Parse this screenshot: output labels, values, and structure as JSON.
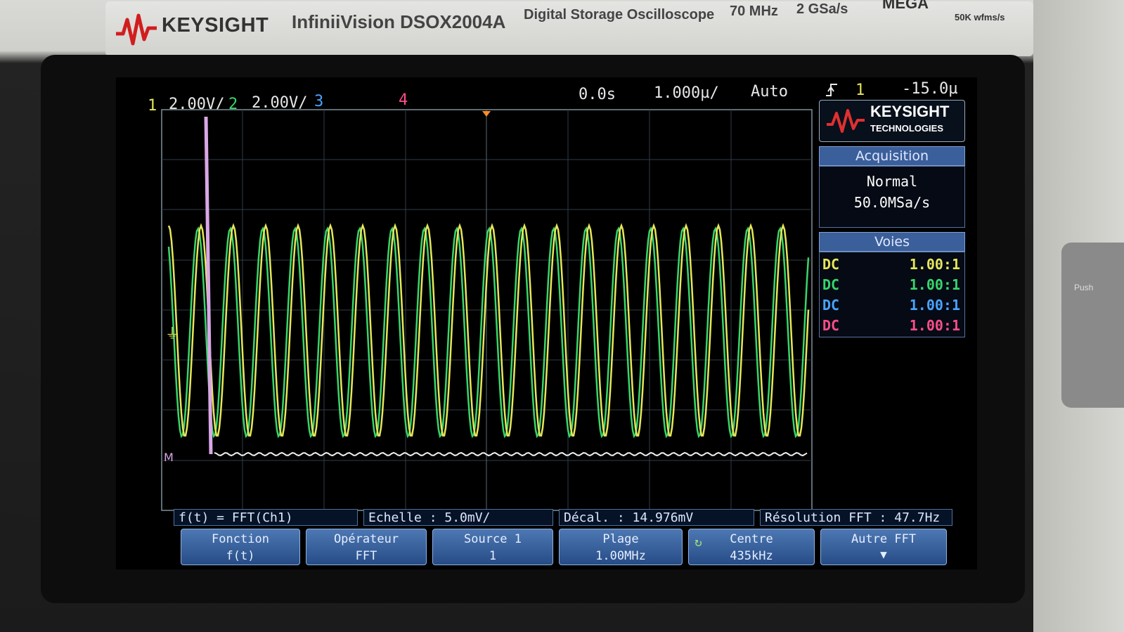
{
  "header": {
    "brand": "KEYSIGHT",
    "model": "InfiniiVision DSOX2004A",
    "description": "Digital Storage Oscilloscope",
    "bandwidth": "70 MHz",
    "sample_rate": "2 GSa/s",
    "mega": "MEGA",
    "wfms": "50K wfms/s"
  },
  "status": {
    "ch1_num": "1",
    "ch1_scale": "2.00V/",
    "ch2_num": "2",
    "ch2_scale": "2.00V/",
    "ch3_num": "3",
    "ch4_num": "4",
    "time_pos": "0.0s",
    "time_scale": "1.000µ/",
    "trigger_mode": "Auto",
    "trigger_icon": "rising-edge-icon",
    "trigger_channel": "1",
    "trigger_level": "-15.0µ"
  },
  "right_panel": {
    "logo_title": "KEYSIGHT",
    "logo_sub": "TECHNOLOGIES",
    "acquisition": {
      "title": "Acquisition",
      "mode": "Normal",
      "rate": "50.0MSa/s"
    },
    "voies": {
      "title": "Voies",
      "rows": [
        {
          "coupling": "DC",
          "ratio": "1.00:1"
        },
        {
          "coupling": "DC",
          "ratio": "1.00:1"
        },
        {
          "coupling": "DC",
          "ratio": "1.00:1"
        },
        {
          "coupling": "DC",
          "ratio": "1.00:1"
        }
      ]
    }
  },
  "status_bar": {
    "function": "f(t) = FFT(Ch1)",
    "scale": "Echelle : 5.0mV/",
    "offset": "Décal. : 14.976mV",
    "resolution": "Résolution FFT : 47.7Hz"
  },
  "softkeys": [
    {
      "title": "Fonction",
      "value": "f(t)"
    },
    {
      "title": "Opérateur",
      "value": "FFT"
    },
    {
      "title": "Source 1",
      "value": "1"
    },
    {
      "title": "Plage",
      "value": "1.00MHz"
    },
    {
      "title": "Centre",
      "value": "435kHz"
    },
    {
      "title": "Autre FFT",
      "value": ""
    }
  ],
  "colors": {
    "ch1": "#e6e65a",
    "ch2": "#37d66b",
    "ch3": "#4aa3ff",
    "ch4": "#ff4d8a",
    "math": "#d9a7e6",
    "panel_header": "#3b5f9a"
  },
  "side": {
    "push_label": "Push"
  }
}
